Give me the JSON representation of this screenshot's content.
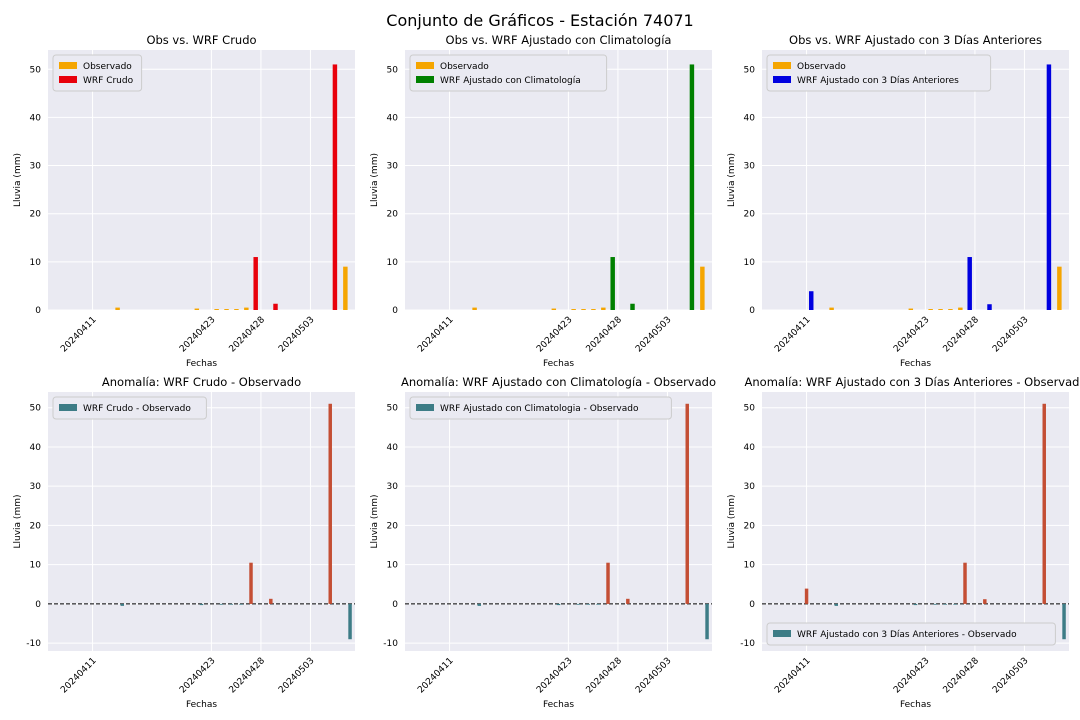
{
  "figure": {
    "title": "Conjunto de Gráficos - Estación 74071"
  },
  "chart_data": [
    {
      "type": "bar",
      "title": "Obs vs. WRF Crudo",
      "xlabel": "Fechas",
      "ylabel": "Lluvia (mm)",
      "ylim": [
        0,
        54
      ],
      "yticks": [
        0,
        10,
        20,
        30,
        40,
        50
      ],
      "xtick_labels": [
        "20240411",
        "20240423",
        "20240428",
        "20240503"
      ],
      "categories": [
        "20240407",
        "20240408",
        "20240409",
        "20240410",
        "20240411",
        "20240412",
        "20240413",
        "20240414",
        "20240415",
        "20240416",
        "20240417",
        "20240418",
        "20240419",
        "20240420",
        "20240421",
        "20240422",
        "20240423",
        "20240424",
        "20240425",
        "20240426",
        "20240427",
        "20240428",
        "20240429",
        "20240430",
        "20240501",
        "20240502",
        "20240503",
        "20240504",
        "20240505",
        "20240506",
        "20240507"
      ],
      "series": [
        {
          "name": "Observado",
          "color": "#f5a500",
          "values": [
            0,
            0,
            0,
            0,
            0,
            0,
            0,
            0.5,
            0,
            0,
            0,
            0,
            0,
            0,
            0,
            0.3,
            0,
            0.2,
            0.2,
            0.2,
            0.5,
            0,
            0,
            0,
            0,
            0,
            0,
            0,
            0,
            0,
            9
          ]
        },
        {
          "name": "WRF Crudo",
          "color": "#e8000b",
          "values": [
            0,
            0,
            0,
            0,
            0,
            0,
            0,
            0,
            0,
            0,
            0,
            0,
            0,
            0,
            0,
            0,
            0,
            0,
            0,
            0,
            11,
            0,
            1.3,
            0,
            0,
            0,
            0,
            0,
            51,
            0,
            0
          ]
        }
      ],
      "legend": "top-left",
      "grid": true
    },
    {
      "type": "bar",
      "title": "Obs vs. WRF Ajustado con Climatología",
      "xlabel": "Fechas",
      "ylabel": "Lluvia (mm)",
      "ylim": [
        0,
        54
      ],
      "yticks": [
        0,
        10,
        20,
        30,
        40,
        50
      ],
      "xtick_labels": [
        "20240411",
        "20240423",
        "20240428",
        "20240503"
      ],
      "categories": [
        "20240407",
        "20240408",
        "20240409",
        "20240410",
        "20240411",
        "20240412",
        "20240413",
        "20240414",
        "20240415",
        "20240416",
        "20240417",
        "20240418",
        "20240419",
        "20240420",
        "20240421",
        "20240422",
        "20240423",
        "20240424",
        "20240425",
        "20240426",
        "20240427",
        "20240428",
        "20240429",
        "20240430",
        "20240501",
        "20240502",
        "20240503",
        "20240504",
        "20240505",
        "20240506",
        "20240507"
      ],
      "series": [
        {
          "name": "Observado",
          "color": "#f5a500",
          "values": [
            0,
            0,
            0,
            0,
            0,
            0,
            0,
            0.5,
            0,
            0,
            0,
            0,
            0,
            0,
            0,
            0.3,
            0,
            0.2,
            0.2,
            0.2,
            0.5,
            0,
            0,
            0,
            0,
            0,
            0,
            0,
            0,
            0,
            9
          ]
        },
        {
          "name": "WRF Ajustado con Climatología",
          "color": "#008000",
          "values": [
            0,
            0,
            0,
            0,
            0,
            0,
            0,
            0,
            0,
            0,
            0,
            0,
            0,
            0,
            0,
            0,
            0,
            0,
            0,
            0,
            11,
            0,
            1.3,
            0,
            0,
            0,
            0,
            0,
            51,
            0,
            0
          ]
        }
      ],
      "legend": "top-left",
      "grid": true
    },
    {
      "type": "bar",
      "title": "Obs vs. WRF Ajustado con 3 Días Anteriores",
      "xlabel": "Fechas",
      "ylabel": "Lluvia (mm)",
      "ylim": [
        0,
        54
      ],
      "yticks": [
        0,
        10,
        20,
        30,
        40,
        50
      ],
      "xtick_labels": [
        "20240411",
        "20240423",
        "20240428",
        "20240503"
      ],
      "categories": [
        "20240407",
        "20240408",
        "20240409",
        "20240410",
        "20240411",
        "20240412",
        "20240413",
        "20240414",
        "20240415",
        "20240416",
        "20240417",
        "20240418",
        "20240419",
        "20240420",
        "20240421",
        "20240422",
        "20240423",
        "20240424",
        "20240425",
        "20240426",
        "20240427",
        "20240428",
        "20240429",
        "20240430",
        "20240501",
        "20240502",
        "20240503",
        "20240504",
        "20240505",
        "20240506",
        "20240507"
      ],
      "series": [
        {
          "name": "Observado",
          "color": "#f5a500",
          "values": [
            0,
            0,
            0,
            0,
            0,
            0,
            0,
            0.5,
            0,
            0,
            0,
            0,
            0,
            0,
            0,
            0.3,
            0,
            0.2,
            0.2,
            0.2,
            0.5,
            0,
            0,
            0,
            0,
            0,
            0,
            0,
            0,
            0,
            9
          ]
        },
        {
          "name": "WRF Ajustado con 3 Días Anteriores",
          "color": "#0000e0",
          "values": [
            0,
            0,
            0,
            0,
            3.9,
            0,
            0,
            0,
            0,
            0,
            0,
            0,
            0,
            0,
            0,
            0,
            0,
            0,
            0,
            0,
            11,
            0,
            1.2,
            0,
            0,
            0,
            0,
            0,
            51,
            0,
            0
          ]
        }
      ],
      "legend": "top-left",
      "grid": true
    },
    {
      "type": "bar",
      "title": "Anomalía: WRF Crudo - Observado",
      "xlabel": "Fechas",
      "ylabel": "Lluvia (mm)",
      "ylim": [
        -12,
        54
      ],
      "yticks": [
        -10,
        0,
        10,
        20,
        30,
        40,
        50
      ],
      "xtick_labels": [
        "20240411",
        "20240423",
        "20240428",
        "20240503"
      ],
      "categories": [
        "20240407",
        "20240408",
        "20240409",
        "20240410",
        "20240411",
        "20240412",
        "20240413",
        "20240414",
        "20240415",
        "20240416",
        "20240417",
        "20240418",
        "20240419",
        "20240420",
        "20240421",
        "20240422",
        "20240423",
        "20240424",
        "20240425",
        "20240426",
        "20240427",
        "20240428",
        "20240429",
        "20240430",
        "20240501",
        "20240502",
        "20240503",
        "20240504",
        "20240505",
        "20240506",
        "20240507"
      ],
      "series": [
        {
          "name": "WRF Crudo - Observado",
          "values": [
            0,
            0,
            0,
            0,
            0,
            0,
            0,
            -0.5,
            0,
            0,
            0,
            0,
            0,
            0,
            0,
            -0.3,
            0,
            -0.2,
            -0.2,
            -0.2,
            10.5,
            0,
            1.3,
            0,
            0,
            0,
            0,
            0,
            51,
            0,
            -9
          ]
        }
      ],
      "positive_color": "#c44e34",
      "negative_color": "#3d7c86",
      "legend": "top-left",
      "zero_line": "dashed",
      "grid": true
    },
    {
      "type": "bar",
      "title": "Anomalía: WRF Ajustado con Climatología - Observado",
      "xlabel": "Fechas",
      "ylabel": "Lluvia (mm)",
      "ylim": [
        -12,
        54
      ],
      "yticks": [
        -10,
        0,
        10,
        20,
        30,
        40,
        50
      ],
      "xtick_labels": [
        "20240411",
        "20240423",
        "20240428",
        "20240503"
      ],
      "categories": [
        "20240407",
        "20240408",
        "20240409",
        "20240410",
        "20240411",
        "20240412",
        "20240413",
        "20240414",
        "20240415",
        "20240416",
        "20240417",
        "20240418",
        "20240419",
        "20240420",
        "20240421",
        "20240422",
        "20240423",
        "20240424",
        "20240425",
        "20240426",
        "20240427",
        "20240428",
        "20240429",
        "20240430",
        "20240501",
        "20240502",
        "20240503",
        "20240504",
        "20240505",
        "20240506",
        "20240507"
      ],
      "series": [
        {
          "name": "WRF Ajustado con Climatologia - Observado",
          "values": [
            0,
            0,
            0,
            0,
            0,
            0,
            0,
            -0.5,
            0,
            0,
            0,
            0,
            0,
            0,
            0,
            -0.3,
            0,
            -0.2,
            -0.2,
            -0.2,
            10.5,
            0,
            1.3,
            0,
            0,
            0,
            0,
            0,
            51,
            0,
            -9
          ]
        }
      ],
      "positive_color": "#c44e34",
      "negative_color": "#3d7c86",
      "legend": "top-left",
      "zero_line": "dashed",
      "grid": true
    },
    {
      "type": "bar",
      "title": "Anomalía: WRF Ajustado con 3 Días Anteriores - Observado",
      "xlabel": "Fechas",
      "ylabel": "Lluvia (mm)",
      "ylim": [
        -12,
        54
      ],
      "yticks": [
        -10,
        0,
        10,
        20,
        30,
        40,
        50
      ],
      "xtick_labels": [
        "20240411",
        "20240423",
        "20240428",
        "20240503"
      ],
      "categories": [
        "20240407",
        "20240408",
        "20240409",
        "20240410",
        "20240411",
        "20240412",
        "20240413",
        "20240414",
        "20240415",
        "20240416",
        "20240417",
        "20240418",
        "20240419",
        "20240420",
        "20240421",
        "20240422",
        "20240423",
        "20240424",
        "20240425",
        "20240426",
        "20240427",
        "20240428",
        "20240429",
        "20240430",
        "20240501",
        "20240502",
        "20240503",
        "20240504",
        "20240505",
        "20240506",
        "20240507"
      ],
      "series": [
        {
          "name": "WRF Ajustado con 3 Días Anteriores - Observado",
          "values": [
            0,
            0,
            0,
            0,
            3.9,
            0,
            0,
            -0.5,
            0,
            0,
            0,
            0,
            0,
            0,
            0,
            -0.3,
            0,
            -0.2,
            -0.2,
            -0.2,
            10.5,
            0,
            1.2,
            0,
            0,
            0,
            0,
            0,
            51,
            0,
            -9
          ]
        }
      ],
      "positive_color": "#c44e34",
      "negative_color": "#3d7c86",
      "legend": "bottom-left",
      "zero_line": "dashed",
      "grid": true
    }
  ]
}
